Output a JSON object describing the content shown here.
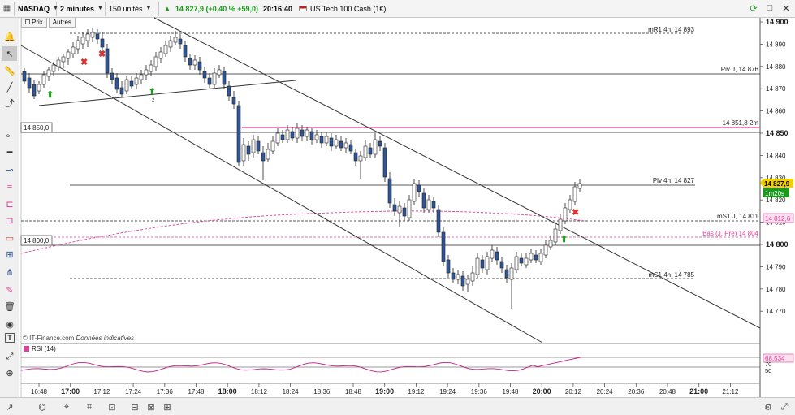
{
  "header": {
    "symbol": "NASDAQ",
    "period": "2 minutes",
    "units": "150 unités",
    "price_change": "14 827,9 (+0,40 % +59,0)",
    "time": "20:16:40",
    "instrument": "US Tech 100 Cash (1€)"
  },
  "subtabs": [
    "Prix",
    "Autres"
  ],
  "price_axis": {
    "ticks": [
      "14 900",
      "14 890",
      "14 880",
      "14 870",
      "14 860",
      "14 850",
      "14 840",
      "14 830",
      "14 820",
      "14 810",
      "14 800",
      "14 790",
      "14 780",
      "14 770"
    ],
    "bold_ticks": [
      "14 900",
      "14 850",
      "14 800"
    ],
    "current_price": "14 827,9",
    "countdown": "1m20s",
    "ms1_tag": "14 812,6",
    "rsi_tag": "68,534",
    "rsi_ticks": [
      "70",
      "50"
    ]
  },
  "levels": {
    "mr1": "mR1 4h, 14 893",
    "piv_j": "Piv J, 14 876",
    "m2": "14 851,8 2m",
    "piv_4h": "Piv 4h, 14 827",
    "ms1_j": "mS1 J, 14 811",
    "bas_j": "Bas (J, Pré) 14 804",
    "ms1_4h": "mS1 4h, 14 785",
    "box_850": "14 850,0",
    "box_800": "14 800,0"
  },
  "time_axis": [
    "16:48",
    "17:00",
    "17:12",
    "17:24",
    "17:36",
    "17:48",
    "18:00",
    "18:12",
    "18:24",
    "18:36",
    "18:48",
    "19:00",
    "19:12",
    "19:24",
    "19:36",
    "19:48",
    "20:00",
    "20:12",
    "20:24",
    "20:36",
    "20:48",
    "21:00",
    "21:12"
  ],
  "bold_times": [
    "17:00",
    "18:00",
    "19:00",
    "20:00",
    "21:00"
  ],
  "watermark": "© IT-Finance.com",
  "watermark_note": "Données indicatives",
  "rsi_label": "RSI (14)",
  "signal_number": "2",
  "colors": {
    "up": "#ffffff",
    "down": "#2f5597",
    "pink": "#e0409a",
    "green": "#1a9a1a",
    "red": "#e03030"
  }
}
